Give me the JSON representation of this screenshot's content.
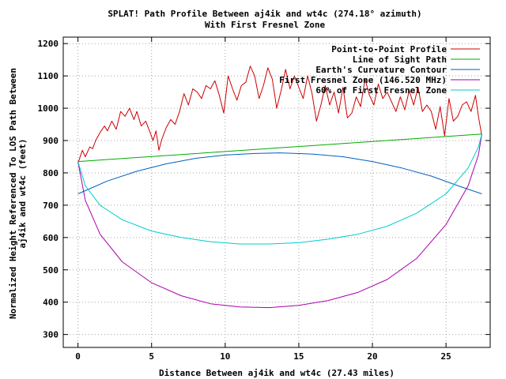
{
  "chart_data": {
    "type": "line",
    "title": [
      "SPLAT! Path Profile Between aj4ik and wt4c (274.18° azimuth)",
      "With First Fresnel Zone"
    ],
    "xlabel": "Distance Between aj4ik and wt4c (27.43 miles)",
    "ylabel": [
      "Normalized Height Referenced To LOS Path Between",
      "aj4ik and wt4c (feet)"
    ],
    "xlim": [
      -1,
      28
    ],
    "ylim": [
      260,
      1220
    ],
    "xticks": [
      0,
      5,
      10,
      15,
      20,
      25
    ],
    "yticks": [
      300,
      400,
      500,
      600,
      700,
      800,
      900,
      1000,
      1100,
      1200
    ],
    "grid": true,
    "legend_position": "top-right",
    "path_length_miles": 27.43,
    "series": [
      {
        "name": "Point-to-Point Profile",
        "color": "#cc0000",
        "x": [
          0,
          0.3,
          0.5,
          0.8,
          1.0,
          1.2,
          1.5,
          1.8,
          2.0,
          2.3,
          2.6,
          2.9,
          3.2,
          3.5,
          3.8,
          4.0,
          4.3,
          4.6,
          4.9,
          5.1,
          5.3,
          5.5,
          5.7,
          6.0,
          6.3,
          6.6,
          6.9,
          7.2,
          7.5,
          7.8,
          8.1,
          8.4,
          8.7,
          9.0,
          9.3,
          9.6,
          9.9,
          10.2,
          10.5,
          10.8,
          11.1,
          11.4,
          11.7,
          12.0,
          12.3,
          12.6,
          12.9,
          13.2,
          13.5,
          13.8,
          14.1,
          14.4,
          14.7,
          15.0,
          15.3,
          15.6,
          15.9,
          16.2,
          16.5,
          16.8,
          17.1,
          17.4,
          17.7,
          18.0,
          18.3,
          18.6,
          18.9,
          19.2,
          19.5,
          19.8,
          20.1,
          20.4,
          20.7,
          21.0,
          21.3,
          21.6,
          21.9,
          22.2,
          22.5,
          22.8,
          23.1,
          23.4,
          23.7,
          24.0,
          24.3,
          24.6,
          24.9,
          25.2,
          25.5,
          25.8,
          26.1,
          26.4,
          26.7,
          27.0,
          27.2,
          27.43
        ],
        "y": [
          830,
          870,
          850,
          880,
          875,
          900,
          925,
          945,
          930,
          960,
          935,
          990,
          975,
          1000,
          965,
          990,
          945,
          960,
          925,
          900,
          930,
          870,
          905,
          940,
          965,
          950,
          990,
          1045,
          1010,
          1060,
          1050,
          1030,
          1070,
          1060,
          1085,
          1040,
          985,
          1100,
          1060,
          1025,
          1070,
          1080,
          1130,
          1100,
          1030,
          1070,
          1125,
          1090,
          1000,
          1055,
          1120,
          1060,
          1100,
          1065,
          1030,
          1100,
          1045,
          960,
          1010,
          1070,
          1010,
          1050,
          985,
          1065,
          970,
          985,
          1035,
          1005,
          1090,
          1040,
          1010,
          1075,
          1030,
          1050,
          1020,
          990,
          1035,
          995,
          1055,
          1010,
          1065,
          990,
          1010,
          990,
          935,
          1005,
          915,
          1030,
          960,
          975,
          1010,
          1020,
          990,
          1040,
          975,
          915
        ]
      },
      {
        "name": "Line of Sight Path",
        "color": "#00aa00",
        "x": [
          0,
          27.43
        ],
        "y": [
          835,
          920
        ]
      },
      {
        "name": "Earth's Curvature Contour",
        "color": "#0060c0",
        "x": [
          0,
          2,
          4,
          6,
          8,
          10,
          12,
          13.7,
          16,
          18,
          20,
          22,
          24,
          26,
          27.43
        ],
        "y": [
          735,
          775,
          805,
          828,
          845,
          855,
          860,
          862,
          858,
          850,
          835,
          815,
          790,
          757,
          735
        ]
      },
      {
        "name": "First Fresnel Zone (146.520 MHz)",
        "color": "#aa00aa",
        "x": [
          0,
          0.5,
          1.5,
          3,
          5,
          7,
          9,
          11,
          13,
          15,
          17,
          19,
          21,
          23,
          25,
          26.5,
          27.2,
          27.43
        ],
        "y": [
          835,
          715,
          610,
          525,
          460,
          420,
          395,
          385,
          383,
          390,
          405,
          430,
          470,
          535,
          640,
          760,
          855,
          920
        ]
      },
      {
        "name": "60% of First Fresnel Zone",
        "color": "#00cccc",
        "x": [
          0,
          0.5,
          1.5,
          3,
          5,
          7,
          9,
          11,
          13,
          15,
          17,
          19,
          21,
          23,
          25,
          26.5,
          27.2,
          27.43
        ],
        "y": [
          835,
          760,
          700,
          655,
          620,
          600,
          587,
          580,
          580,
          584,
          595,
          610,
          635,
          675,
          735,
          815,
          880,
          920
        ]
      }
    ]
  }
}
